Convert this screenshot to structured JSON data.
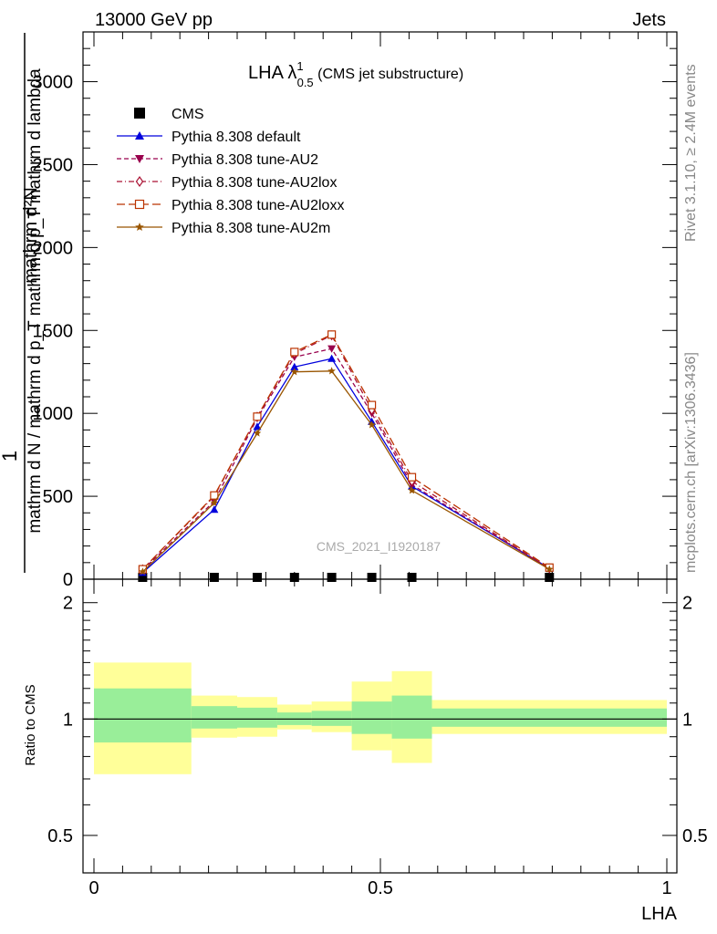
{
  "header": {
    "left": "13000 GeV pp",
    "right": "Jets"
  },
  "side_text": {
    "rivet": "Rivet 3.1.10, ≥ 2.4M events",
    "mcplots": "mcplots.cern.ch [arXiv:1306.3436]"
  },
  "watermark": "CMS_2021_I1920187",
  "title": {
    "main": "LHA λ",
    "sup": "1",
    "sub": "0.5",
    "suffix": " (CMS jet substructure)"
  },
  "y_label_top": {
    "numerator_one": "1",
    "numerator_rest": "mathrm d²N",
    "denominator": "mathrm d N / mathrm d p_T mathrm d p_T mathrm d lambda"
  },
  "y_label_bottom": "Ratio to CMS",
  "x_label": "LHA",
  "colors": {
    "cms": "#000000",
    "default": "#0000dd",
    "au2": "#99004d",
    "au2lox": "#aa1133",
    "au2loxx": "#bb3300",
    "au2m": "#995500",
    "band_inner": "#99ee99",
    "band_outer": "#ffff99"
  },
  "chart_data": [
    {
      "type": "line",
      "panel": "main",
      "xlim": [
        0,
        1
      ],
      "ylim": [
        0,
        3300
      ],
      "x_ticks": [
        0,
        0.5,
        1
      ],
      "y_ticks": [
        0,
        500,
        1000,
        1500,
        2000,
        2500,
        3000
      ],
      "y_tick_labels": [
        "0",
        "500",
        "1000",
        "1500",
        "2000",
        "2500",
        "3000"
      ],
      "legend_position": "top-left",
      "series": [
        {
          "name": "CMS",
          "marker": "square",
          "x": [
            0.085,
            0.21,
            0.285,
            0.35,
            0.415,
            0.485,
            0.555,
            0.795
          ],
          "y": [
            0,
            0,
            0,
            0,
            0,
            0,
            0,
            0
          ]
        },
        {
          "name": "Pythia 8.308 default",
          "marker": "triangle-up",
          "dash": "solid",
          "x": [
            0.085,
            0.21,
            0.285,
            0.35,
            0.415,
            0.485,
            0.555,
            0.795
          ],
          "y": [
            40,
            420,
            920,
            1280,
            1330,
            950,
            560,
            65
          ]
        },
        {
          "name": "Pythia 8.308 tune-AU2",
          "marker": "triangle-down",
          "dash": "dashed",
          "x": [
            0.085,
            0.21,
            0.285,
            0.35,
            0.415,
            0.485,
            0.555,
            0.795
          ],
          "y": [
            55,
            470,
            970,
            1340,
            1390,
            1000,
            570,
            65
          ]
        },
        {
          "name": "Pythia 8.308 tune-AU2lox",
          "marker": "diamond-open",
          "dash": "dashdot",
          "x": [
            0.085,
            0.21,
            0.285,
            0.35,
            0.415,
            0.485,
            0.555,
            0.795
          ],
          "y": [
            60,
            500,
            980,
            1360,
            1470,
            1020,
            590,
            65
          ]
        },
        {
          "name": "Pythia 8.308 tune-AU2loxx",
          "marker": "square-open",
          "dash": "longdash",
          "x": [
            0.085,
            0.21,
            0.285,
            0.35,
            0.415,
            0.485,
            0.555,
            0.795
          ],
          "y": [
            60,
            505,
            980,
            1370,
            1475,
            1050,
            615,
            70
          ]
        },
        {
          "name": "Pythia 8.308 tune-AU2m",
          "marker": "star",
          "dash": "solid",
          "x": [
            0.085,
            0.21,
            0.285,
            0.35,
            0.415,
            0.485,
            0.555,
            0.795
          ],
          "y": [
            45,
            460,
            880,
            1250,
            1255,
            930,
            535,
            60
          ]
        }
      ]
    },
    {
      "type": "area",
      "panel": "ratio",
      "xlim": [
        0,
        1
      ],
      "ylim": [
        0.4,
        2.3
      ],
      "y_scale": "log",
      "y_ticks": [
        0.5,
        1,
        2
      ],
      "y_tick_labels": [
        "0.5",
        "1",
        "2"
      ],
      "x_tick_labels": [
        "0",
        "0.5",
        "1"
      ],
      "reference_line": 1,
      "bins": [
        {
          "x0": 0.0,
          "x1": 0.17,
          "inner": [
            0.87,
            1.2
          ],
          "outer": [
            0.72,
            1.4
          ]
        },
        {
          "x0": 0.17,
          "x1": 0.25,
          "inner": [
            0.945,
            1.08
          ],
          "outer": [
            0.895,
            1.15
          ]
        },
        {
          "x0": 0.25,
          "x1": 0.32,
          "inner": [
            0.95,
            1.07
          ],
          "outer": [
            0.9,
            1.14
          ]
        },
        {
          "x0": 0.32,
          "x1": 0.38,
          "inner": [
            0.965,
            1.04
          ],
          "outer": [
            0.94,
            1.09
          ]
        },
        {
          "x0": 0.38,
          "x1": 0.45,
          "inner": [
            0.96,
            1.05
          ],
          "outer": [
            0.925,
            1.11
          ]
        },
        {
          "x0": 0.45,
          "x1": 0.52,
          "inner": [
            0.915,
            1.11
          ],
          "outer": [
            0.83,
            1.25
          ]
        },
        {
          "x0": 0.52,
          "x1": 0.59,
          "inner": [
            0.89,
            1.15
          ],
          "outer": [
            0.77,
            1.33
          ]
        },
        {
          "x0": 0.59,
          "x1": 1.0,
          "inner": [
            0.955,
            1.065
          ],
          "outer": [
            0.915,
            1.12
          ]
        }
      ]
    }
  ]
}
